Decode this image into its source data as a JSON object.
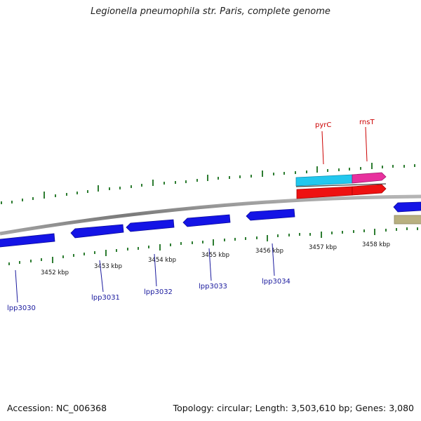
{
  "title": "Legionella pneumophila str. Paris, complete genome",
  "footer": {
    "accession": "Accession: NC_006368",
    "summary": "Topology: circular; Length: 3,503,610 bp; Genes: 3,080"
  },
  "colors": {
    "backbone": "#8a8a8a",
    "tick": "#2e7d32",
    "gene_fill": "#1414e6",
    "gene_label": "#1a1a9e",
    "feature_label": "#cc0000",
    "pyrC": "#22c7ee",
    "rnsT": "#e8309e",
    "red_gene": "#ee1111",
    "khaki_gene": "#b8b080"
  },
  "scale_labels": [
    "3452 kbp",
    "3453 kbp",
    "3454 kbp",
    "3455 kbp",
    "3456 kbp",
    "3457 kbp",
    "3458 kbp"
  ],
  "gene_labels": [
    "lpp3030",
    "lpp3031",
    "lpp3032",
    "lpp3033",
    "lpp3034"
  ],
  "feature_labels": [
    "pyrC",
    "rnsT"
  ]
}
